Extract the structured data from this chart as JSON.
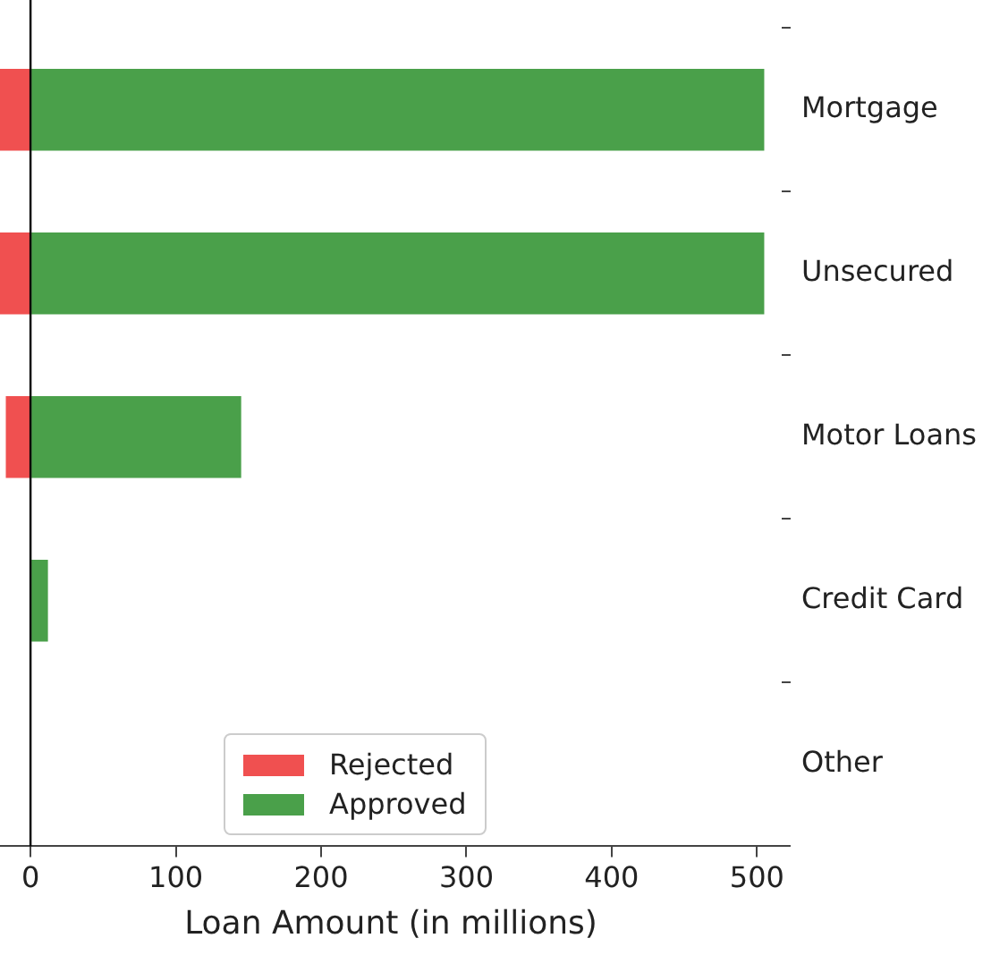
{
  "chart_data": {
    "type": "bar",
    "orientation": "horizontal",
    "stacked": true,
    "categories": [
      "Mortgage",
      "Unsecured",
      "Motor Loans",
      "Credit Card",
      "Other"
    ],
    "series": [
      {
        "name": "Rejected",
        "color": "#f05050",
        "values": [
          -21,
          -21,
          -17,
          0,
          0
        ]
      },
      {
        "name": "Approved",
        "color": "#4aa04a",
        "values": [
          505,
          505,
          145,
          12,
          0
        ]
      }
    ],
    "xlabel": "Loan Amount (in millions)",
    "xlim": [
      -21,
      517
    ],
    "xticks": [
      0,
      100,
      200,
      300,
      400,
      500
    ],
    "ref_lines": [
      {
        "axis": "x",
        "value": 0,
        "color": "#000000"
      }
    ],
    "legend": "bottom",
    "grid": false
  }
}
